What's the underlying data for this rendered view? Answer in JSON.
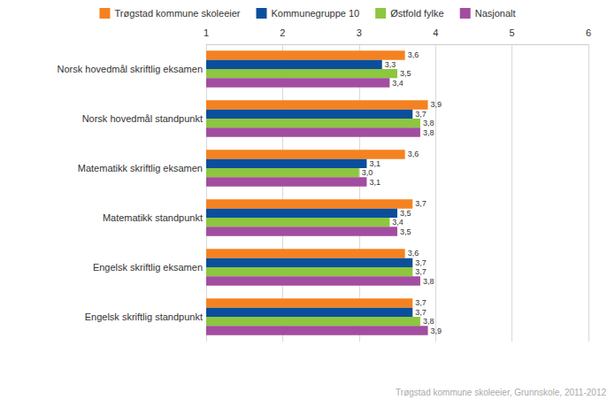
{
  "chart_data": {
    "type": "bar",
    "orientation": "horizontal",
    "categories": [
      "Norsk hovedmål skriftlig eksamen",
      "Norsk hovedmål standpunkt",
      "Matematikk skriftlig eksamen",
      "Matematikk standpunkt",
      "Engelsk skriftlig eksamen",
      "Engelsk skriftlig standpunkt"
    ],
    "series": [
      {
        "name": "Trøgstad kommune skoleeier",
        "color": "#f58220",
        "values": [
          3.6,
          3.9,
          3.6,
          3.7,
          3.6,
          3.7
        ],
        "value_labels": [
          "3,6",
          "3,9",
          "3,6",
          "3,7",
          "3,6",
          "3,7"
        ]
      },
      {
        "name": "Kommunegruppe 10",
        "color": "#0b4f9c",
        "values": [
          3.3,
          3.7,
          3.1,
          3.5,
          3.7,
          3.7
        ],
        "value_labels": [
          "3,3",
          "3,7",
          "3,1",
          "3,5",
          "3,7",
          "3,7"
        ]
      },
      {
        "name": "Østfold fylke",
        "color": "#8dc63f",
        "values": [
          3.5,
          3.8,
          3.0,
          3.4,
          3.7,
          3.8
        ],
        "value_labels": [
          "3,5",
          "3,8",
          "3,0",
          "3,4",
          "3,7",
          "3,8"
        ]
      },
      {
        "name": "Nasjonalt",
        "color": "#a24d9f",
        "values": [
          3.4,
          3.8,
          3.1,
          3.5,
          3.8,
          3.9
        ],
        "value_labels": [
          "3,4",
          "3,8",
          "3,1",
          "3,5",
          "3,8",
          "3,9"
        ]
      }
    ],
    "xlim": [
      1,
      6
    ],
    "xticks": [
      1,
      2,
      3,
      4,
      5,
      6
    ],
    "grid": true,
    "legend": "top",
    "data_labels": true,
    "annotations": [
      "Trøgstad kommune skoleeier, Grunnskole, 2011-2012"
    ]
  }
}
